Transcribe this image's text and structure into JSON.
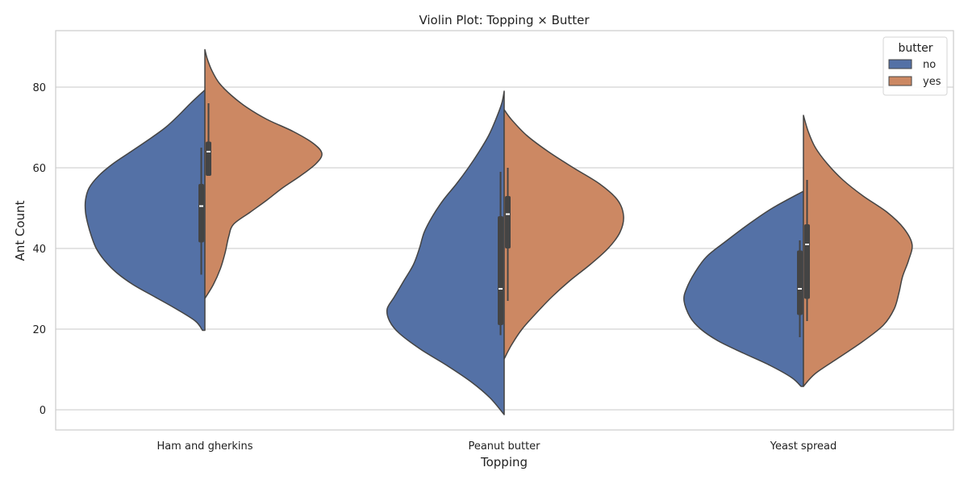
{
  "chart_data": {
    "type": "violin",
    "title": "Violin Plot: Topping × Butter",
    "xlabel": "Topping",
    "ylabel": "Ant Count",
    "categories": [
      "Ham and gherkins",
      "Peanut butter",
      "Yeast spread"
    ],
    "ylim": [
      -5,
      94
    ],
    "yticks": [
      0,
      20,
      40,
      60,
      80
    ],
    "grid": true,
    "split": true,
    "legend": {
      "title": "butter",
      "position": "top-right"
    },
    "series": [
      {
        "name": "no",
        "color": "#5471a6",
        "violins": [
          {
            "category": "Ham and gherkins",
            "ymin": 19.7,
            "ymax": 79.3,
            "median": 50.5,
            "q1": 41.5,
            "q3": 56.0,
            "whisker_low": 33.5,
            "whisker_high": 65.0,
            "profile": [
              [
                19.7,
                0.02
              ],
              [
                22,
                0.08
              ],
              [
                25,
                0.24
              ],
              [
                28,
                0.42
              ],
              [
                31,
                0.6
              ],
              [
                34,
                0.74
              ],
              [
                37,
                0.84
              ],
              [
                40,
                0.91
              ],
              [
                43,
                0.95
              ],
              [
                46,
                0.98
              ],
              [
                49,
                1.0
              ],
              [
                52,
                1.0
              ],
              [
                55,
                0.97
              ],
              [
                58,
                0.89
              ],
              [
                61,
                0.77
              ],
              [
                64,
                0.62
              ],
              [
                67,
                0.47
              ],
              [
                70,
                0.33
              ],
              [
                73,
                0.22
              ],
              [
                76,
                0.12
              ],
              [
                79.3,
                0.0
              ]
            ]
          },
          {
            "category": "Peanut butter",
            "ymin": -1.2,
            "ymax": 79.0,
            "median": 30.0,
            "q1": 21.0,
            "q3": 48.0,
            "whisker_low": 18.5,
            "whisker_high": 59.0,
            "profile": [
              [
                -1.2,
                0.0
              ],
              [
                3,
                0.12
              ],
              [
                7,
                0.28
              ],
              [
                11,
                0.48
              ],
              [
                15,
                0.7
              ],
              [
                19,
                0.88
              ],
              [
                22,
                0.96
              ],
              [
                25,
                0.98
              ],
              [
                28,
                0.92
              ],
              [
                32,
                0.84
              ],
              [
                36,
                0.76
              ],
              [
                40,
                0.71
              ],
              [
                44,
                0.67
              ],
              [
                48,
                0.6
              ],
              [
                52,
                0.51
              ],
              [
                56,
                0.4
              ],
              [
                60,
                0.3
              ],
              [
                64,
                0.21
              ],
              [
                68,
                0.13
              ],
              [
                72,
                0.07
              ],
              [
                76,
                0.02
              ],
              [
                79,
                0.0
              ]
            ]
          },
          {
            "category": "Yeast spread",
            "ymin": 5.8,
            "ymax": 54.2,
            "median": 30.0,
            "q1": 23.5,
            "q3": 39.5,
            "whisker_low": 18.0,
            "whisker_high": 42.0,
            "profile": [
              [
                5.8,
                0.02
              ],
              [
                8,
                0.1
              ],
              [
                11,
                0.28
              ],
              [
                14,
                0.5
              ],
              [
                17,
                0.71
              ],
              [
                20,
                0.86
              ],
              [
                23,
                0.95
              ],
              [
                27,
                1.0
              ],
              [
                30,
                0.98
              ],
              [
                34,
                0.91
              ],
              [
                38,
                0.81
              ],
              [
                42,
                0.64
              ],
              [
                46,
                0.46
              ],
              [
                50,
                0.26
              ],
              [
                54.2,
                0.0
              ]
            ]
          }
        ]
      },
      {
        "name": "yes",
        "color": "#cc8863",
        "violins": [
          {
            "category": "Ham and gherkins",
            "ymin": 27.6,
            "ymax": 89.3,
            "median": 64.0,
            "q1": 58.0,
            "q3": 66.5,
            "whisker_low": 58.0,
            "whisker_high": 76.0,
            "profile": [
              [
                27.6,
                0.0
              ],
              [
                31,
                0.07
              ],
              [
                35,
                0.13
              ],
              [
                39,
                0.17
              ],
              [
                43,
                0.2
              ],
              [
                46,
                0.24
              ],
              [
                49,
                0.38
              ],
              [
                52,
                0.52
              ],
              [
                55,
                0.65
              ],
              [
                58,
                0.8
              ],
              [
                61,
                0.93
              ],
              [
                63.5,
                0.98
              ],
              [
                66,
                0.91
              ],
              [
                69,
                0.74
              ],
              [
                72,
                0.52
              ],
              [
                75,
                0.35
              ],
              [
                78,
                0.22
              ],
              [
                81,
                0.12
              ],
              [
                84,
                0.06
              ],
              [
                87,
                0.02
              ],
              [
                89.3,
                0.0
              ]
            ]
          },
          {
            "category": "Peanut butter",
            "ymin": 12.6,
            "ymax": 74.4,
            "median": 48.5,
            "q1": 40.0,
            "q3": 53.0,
            "whisker_low": 27.0,
            "whisker_high": 60.0,
            "profile": [
              [
                12.6,
                0.0
              ],
              [
                16,
                0.06
              ],
              [
                20,
                0.15
              ],
              [
                24,
                0.27
              ],
              [
                28,
                0.4
              ],
              [
                32,
                0.55
              ],
              [
                36,
                0.72
              ],
              [
                40,
                0.87
              ],
              [
                44,
                0.97
              ],
              [
                48,
                1.0
              ],
              [
                52,
                0.95
              ],
              [
                56,
                0.8
              ],
              [
                60,
                0.58
              ],
              [
                64,
                0.37
              ],
              [
                68,
                0.19
              ],
              [
                72,
                0.06
              ],
              [
                74.4,
                0.0
              ]
            ]
          },
          {
            "category": "Yeast spread",
            "ymin": 5.8,
            "ymax": 73.0,
            "median": 41.0,
            "q1": 27.5,
            "q3": 46.0,
            "whisker_low": 22.0,
            "whisker_high": 57.0,
            "profile": [
              [
                5.8,
                0.0
              ],
              [
                9,
                0.1
              ],
              [
                13,
                0.3
              ],
              [
                17,
                0.5
              ],
              [
                21,
                0.67
              ],
              [
                25,
                0.76
              ],
              [
                29,
                0.8
              ],
              [
                33,
                0.83
              ],
              [
                37,
                0.88
              ],
              [
                41,
                0.91
              ],
              [
                45,
                0.84
              ],
              [
                49,
                0.7
              ],
              [
                53,
                0.5
              ],
              [
                57,
                0.33
              ],
              [
                61,
                0.2
              ],
              [
                65,
                0.1
              ],
              [
                69,
                0.04
              ],
              [
                73,
                0.0
              ]
            ]
          }
        ]
      }
    ]
  }
}
